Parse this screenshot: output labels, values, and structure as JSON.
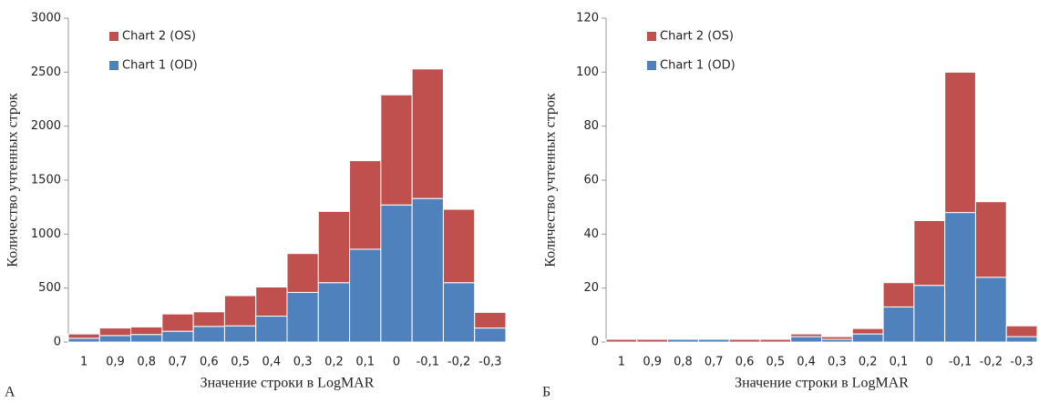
{
  "chart_data": [
    {
      "type": "stacked-bar",
      "panel_label": "А",
      "xlabel": "Значение строки в LogMAR",
      "ylabel": "Количество учтенных строк",
      "categories": [
        "1",
        "0,9",
        "0,8",
        "0,7",
        "0,6",
        "0,5",
        "0,4",
        "0,3",
        "0,2",
        "0,1",
        "0",
        "-0,1",
        "-0,2",
        "-0,3"
      ],
      "series": [
        {
          "name": "Chart 1 (OD)",
          "color": "#4f81bd",
          "values": [
            35,
            60,
            70,
            100,
            145,
            150,
            240,
            460,
            550,
            860,
            1270,
            1330,
            550,
            130
          ]
        },
        {
          "name": "Chart 2 (OS)",
          "color": "#c0504d",
          "values": [
            40,
            70,
            70,
            160,
            135,
            280,
            270,
            360,
            660,
            820,
            1020,
            1200,
            680,
            145
          ]
        }
      ],
      "ylim": [
        0,
        3000
      ],
      "yticks": [
        0,
        500,
        1000,
        1500,
        2000,
        2500,
        3000
      ]
    },
    {
      "type": "stacked-bar",
      "panel_label": "Б",
      "xlabel": "Значение строки в LogMAR",
      "ylabel": "Количество учтенных строк",
      "categories": [
        "1",
        "0,9",
        "0,8",
        "0,7",
        "0,6",
        "0,5",
        "0,4",
        "0,3",
        "0,2",
        "0,1",
        "0",
        "-0,1",
        "-0,2",
        "-0,3"
      ],
      "series": [
        {
          "name": "Chart 1 (OD)",
          "color": "#4f81bd",
          "values": [
            0,
            0,
            1,
            1,
            0,
            0,
            2,
            1,
            3,
            13,
            21,
            48,
            24,
            2
          ]
        },
        {
          "name": "Chart 2 (OS)",
          "color": "#c0504d",
          "values": [
            1,
            1,
            0,
            0,
            1,
            1,
            1,
            1,
            2,
            9,
            24,
            52,
            28,
            4
          ]
        }
      ],
      "ylim": [
        0,
        120
      ],
      "yticks": [
        0,
        20,
        40,
        60,
        80,
        100,
        120
      ]
    }
  ]
}
